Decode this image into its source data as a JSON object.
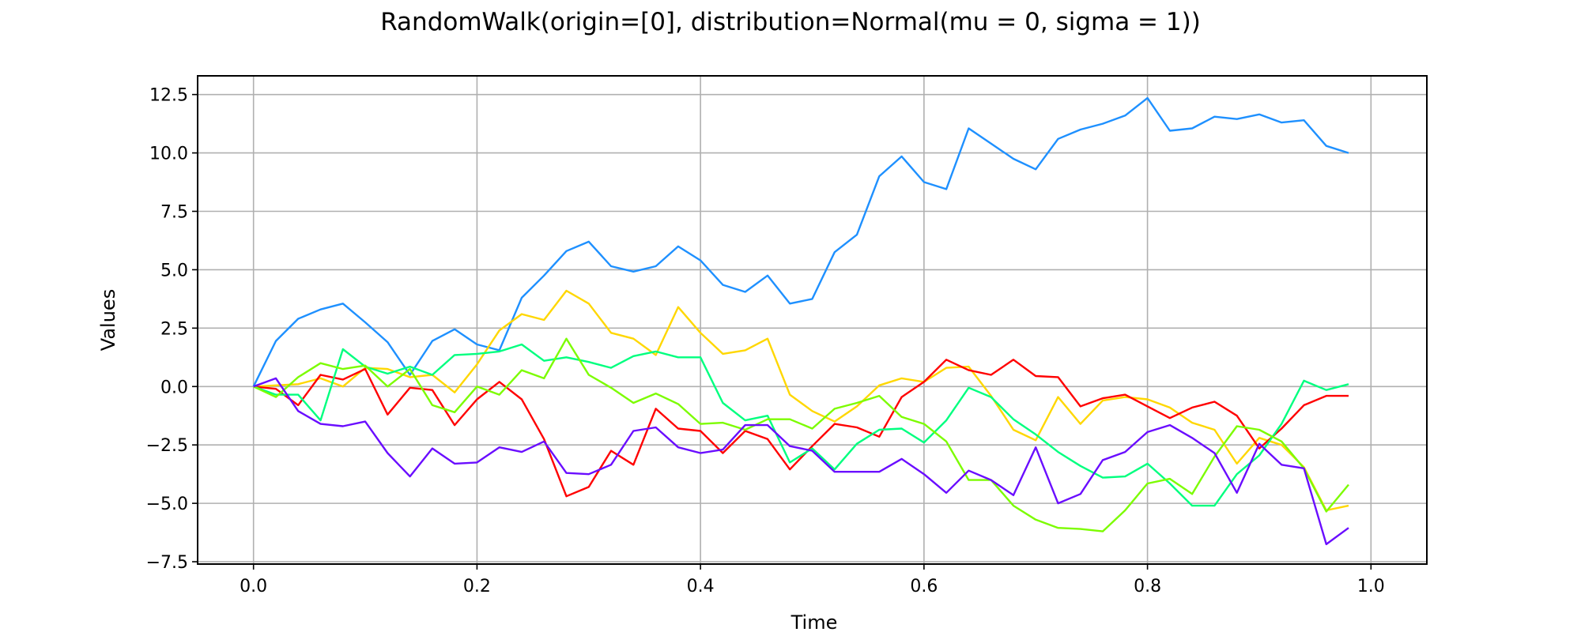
{
  "chart_data": {
    "type": "line",
    "title": "RandomWalk(origin=[0], distribution=Normal(mu = 0, sigma = 1))",
    "xlabel": "Time",
    "ylabel": "Values",
    "xlim": [
      -0.05,
      1.05
    ],
    "ylim": [
      -7.6,
      13.3
    ],
    "x_ticks": [
      0.0,
      0.2,
      0.4,
      0.6,
      0.8,
      1.0
    ],
    "x_tick_labels": [
      "0.0",
      "0.2",
      "0.4",
      "0.6",
      "0.8",
      "1.0"
    ],
    "y_ticks": [
      -7.5,
      -5.0,
      -2.5,
      0.0,
      2.5,
      5.0,
      7.5,
      10.0,
      12.5
    ],
    "y_tick_labels": [
      "−7.5",
      "−5.0",
      "−2.5",
      "0.0",
      "2.5",
      "5.0",
      "7.5",
      "10.0",
      "12.5"
    ],
    "grid": true,
    "x": [
      0.0,
      0.02,
      0.04,
      0.06,
      0.08,
      0.1,
      0.12,
      0.14,
      0.16,
      0.18,
      0.2,
      0.22,
      0.24,
      0.26,
      0.28,
      0.3,
      0.32,
      0.34,
      0.36,
      0.38,
      0.4,
      0.42,
      0.44,
      0.46,
      0.48,
      0.5,
      0.52,
      0.54,
      0.56,
      0.58,
      0.6,
      0.62,
      0.64,
      0.66,
      0.68,
      0.7,
      0.72,
      0.74,
      0.76,
      0.78,
      0.8,
      0.82,
      0.84,
      0.86,
      0.88,
      0.9,
      0.92,
      0.94,
      0.96,
      0.98
    ],
    "series": [
      {
        "color": "#1e90ff",
        "values": [
          0.0,
          1.95,
          2.9,
          3.3,
          3.55,
          2.75,
          1.9,
          0.5,
          1.95,
          2.45,
          1.8,
          1.55,
          3.8,
          4.75,
          5.8,
          6.2,
          5.15,
          4.92,
          5.15,
          6.0,
          5.4,
          4.35,
          4.05,
          4.75,
          3.55,
          3.75,
          5.75,
          6.5,
          9.0,
          9.85,
          8.75,
          8.45,
          11.05,
          10.4,
          9.75,
          9.3,
          10.6,
          11.0,
          11.25,
          11.6,
          12.35,
          10.95,
          11.05,
          11.55,
          11.45,
          11.65,
          11.3,
          11.4,
          10.3,
          10.0
        ]
      },
      {
        "color": "#ffd700",
        "values": [
          0.0,
          0.05,
          0.1,
          0.35,
          0.0,
          0.8,
          0.75,
          0.4,
          0.5,
          -0.25,
          0.95,
          2.4,
          3.1,
          2.85,
          4.1,
          3.55,
          2.3,
          2.05,
          1.35,
          3.4,
          2.3,
          1.4,
          1.55,
          2.05,
          -0.35,
          -1.05,
          -1.5,
          -0.85,
          0.05,
          0.35,
          0.2,
          0.8,
          0.85,
          -0.4,
          -1.85,
          -2.3,
          -0.45,
          -1.6,
          -0.6,
          -0.45,
          -0.55,
          -0.9,
          -1.55,
          -1.85,
          -3.3,
          -2.2,
          -2.5,
          -3.45,
          -5.3,
          -5.1
        ]
      },
      {
        "color": "#ff0000",
        "values": [
          0.0,
          -0.1,
          -0.8,
          0.5,
          0.3,
          0.75,
          -1.2,
          -0.05,
          -0.15,
          -1.65,
          -0.55,
          0.2,
          -0.55,
          -2.25,
          -4.7,
          -4.3,
          -2.75,
          -3.35,
          -0.95,
          -1.8,
          -1.9,
          -2.85,
          -1.9,
          -2.25,
          -3.55,
          -2.55,
          -1.6,
          -1.75,
          -2.15,
          -0.45,
          0.2,
          1.15,
          0.7,
          0.5,
          1.15,
          0.45,
          0.4,
          -0.85,
          -0.5,
          -0.35,
          -0.85,
          -1.35,
          -0.9,
          -0.65,
          -1.25,
          -2.65,
          -1.8,
          -0.8,
          -0.4,
          -0.4
        ]
      },
      {
        "color": "#00ff7f",
        "values": [
          0.0,
          -0.35,
          -0.35,
          -1.45,
          1.6,
          0.85,
          0.55,
          0.85,
          0.5,
          1.35,
          1.4,
          1.5,
          1.8,
          1.1,
          1.25,
          1.05,
          0.8,
          1.3,
          1.5,
          1.25,
          1.25,
          -0.7,
          -1.45,
          -1.25,
          -3.25,
          -2.65,
          -3.55,
          -2.45,
          -1.85,
          -1.8,
          -2.4,
          -1.45,
          -0.05,
          -0.45,
          -1.4,
          -2.05,
          -2.8,
          -3.4,
          -3.9,
          -3.85,
          -3.3,
          -4.15,
          -5.1,
          -5.1,
          -3.75,
          -2.95,
          -1.6,
          0.25,
          -0.15,
          0.1
        ]
      },
      {
        "color": "#7cfc00",
        "values": [
          0.0,
          -0.45,
          0.4,
          1.0,
          0.75,
          0.9,
          0.0,
          0.75,
          -0.8,
          -1.1,
          0.0,
          -0.35,
          0.7,
          0.35,
          2.05,
          0.5,
          -0.05,
          -0.7,
          -0.3,
          -0.75,
          -1.6,
          -1.55,
          -1.85,
          -1.4,
          -1.4,
          -1.8,
          -0.95,
          -0.7,
          -0.4,
          -1.3,
          -1.6,
          -2.35,
          -4.0,
          -4.0,
          -5.1,
          -5.7,
          -6.05,
          -6.1,
          -6.2,
          -5.3,
          -4.15,
          -3.95,
          -4.6,
          -3.0,
          -1.7,
          -1.85,
          -2.35,
          -3.5,
          -5.35,
          -4.2
        ]
      },
      {
        "color": "#6a0dff",
        "values": [
          0.0,
          0.35,
          -1.05,
          -1.6,
          -1.7,
          -1.5,
          -2.85,
          -3.85,
          -2.65,
          -3.3,
          -3.25,
          -2.6,
          -2.8,
          -2.35,
          -3.7,
          -3.75,
          -3.35,
          -1.9,
          -1.75,
          -2.6,
          -2.85,
          -2.7,
          -1.65,
          -1.65,
          -2.55,
          -2.75,
          -3.65,
          -3.65,
          -3.65,
          -3.1,
          -3.75,
          -4.55,
          -3.6,
          -4.0,
          -4.65,
          -2.6,
          -5.0,
          -4.6,
          -3.15,
          -2.8,
          -1.95,
          -1.65,
          -2.2,
          -2.85,
          -4.55,
          -2.45,
          -3.35,
          -3.5,
          -6.75,
          -6.05
        ]
      }
    ]
  }
}
